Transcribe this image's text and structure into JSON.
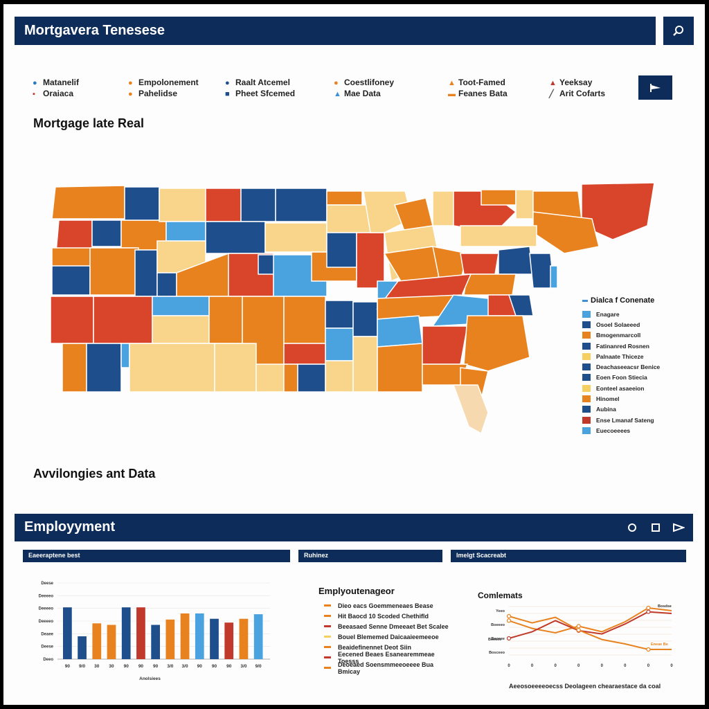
{
  "header": {
    "title": "Mortgavera Tenesese",
    "search_icon": "search-icon"
  },
  "legend_top": [
    {
      "l1": "Matanelif",
      "l2": "Oraiaca",
      "c1": "#2b7bbf",
      "c2": "#c0392b"
    },
    {
      "l1": "Empolonement",
      "l2": "Pahelidse",
      "c1": "#e8821e",
      "c2": "#e8821e"
    },
    {
      "l1": "Raalt Atcemel",
      "l2": "Pheet Sfcemed",
      "c1": "#1f4e8c",
      "c2": "#1f4e8c"
    },
    {
      "l1": "Coestlifoney",
      "l2": "Mae Data",
      "c1": "#e8821e",
      "c2": "#3f8fd6"
    },
    {
      "l1": "Toot-Famed",
      "l2": "Feanes Bata",
      "c1": "#e8821e",
      "c2": "#e8821e"
    },
    {
      "l1": "Yeeksay",
      "l2": "Arit Cofarts",
      "c1": "#c0392b",
      "c2": "#555555"
    }
  ],
  "map_section": {
    "title": "Mortgage late Real"
  },
  "map_legend": {
    "title": "Dialca f Conenate",
    "items": [
      {
        "label": "Enagare",
        "color": "#4aa3df"
      },
      {
        "label": "Osoel Solaeeed",
        "color": "#1f4e8c"
      },
      {
        "label": "Bmogenmarcoll",
        "color": "#e8821e"
      },
      {
        "label": "Fatinanred Rosnen",
        "color": "#1f4e8c"
      },
      {
        "label": "Palnaate Thiceze",
        "color": "#f6cf63"
      },
      {
        "label": "Deachaseeacsr Benice",
        "color": "#1f4e8c"
      },
      {
        "label": "Eoen Foon Stiecia",
        "color": "#1f4e8c"
      },
      {
        "label": "Eonteel asaeeion",
        "color": "#f6cf63"
      },
      {
        "label": "Hinomel",
        "color": "#e8821e"
      },
      {
        "label": "Aubina",
        "color": "#1f4e8c"
      },
      {
        "label": "Ense Lmanaf Sateng",
        "color": "#c0392b"
      },
      {
        "label": "Euecoeeees",
        "color": "#4aa3df"
      }
    ]
  },
  "avail_section": {
    "title": "Avvilongies ant Data"
  },
  "employment": {
    "title": "Employyment",
    "ctrl_circle": "circle-icon",
    "ctrl_square": "square-icon",
    "ctrl_play": "play-icon"
  },
  "panels": [
    {
      "label": "Eaeeraptene best"
    },
    {
      "label": "Ruhinez"
    },
    {
      "label": "Imelgt Scacreabt"
    }
  ],
  "chart_data": [
    {
      "type": "bar",
      "title": "",
      "xlabel": "Anolsiees",
      "ylabel": "",
      "y_tick_labels": [
        "Deese",
        "Deeeeo",
        "Deeeeo",
        "Deeeeo",
        "Deaee",
        "Deese",
        "Deeo"
      ],
      "categories": [
        "90",
        "9/0",
        "30",
        "30",
        "90",
        "90",
        "90",
        "3/0",
        "3/0",
        "90",
        "90",
        "90",
        "3/0",
        "9/0"
      ],
      "values": [
        68,
        30,
        47,
        45,
        68,
        68,
        45,
        52,
        60,
        60,
        53,
        48,
        53,
        59
      ],
      "colors": [
        "#1f4e8c",
        "#1f4e8c",
        "#e8821e",
        "#e8821e",
        "#1f4e8c",
        "#c0392b",
        "#1f4e8c",
        "#e8821e",
        "#e8821e",
        "#4aa3df",
        "#1f4e8c",
        "#c0392b",
        "#e8821e",
        "#4aa3df"
      ],
      "ylim": [
        0,
        100
      ]
    },
    {
      "type": "table",
      "title": "Emplyoutenageor",
      "items": [
        {
          "label": "Dieo eacs Goemmeneaes Bease",
          "color": "#e8821e"
        },
        {
          "label": "Hit Baocd 10 Scoded Chethifld",
          "color": "#e8821e"
        },
        {
          "label": "Beeasaed Senne Dmeeaet Bet Scalee",
          "color": "#c0392b"
        },
        {
          "label": "Bouel Blememed Daicaaieemeeoe",
          "color": "#f6cf63"
        },
        {
          "label": "Beaidefinennet Deot Siin",
          "color": "#e8821e"
        },
        {
          "label": "Eecened Beaes Esanearemmeae Toesss",
          "color": "#c0392b"
        },
        {
          "label": "Deoeaed Soensmmeeoeeee Bua Bmicay",
          "color": "#e8821e"
        }
      ]
    },
    {
      "type": "line",
      "title": "Comlemats",
      "x": [
        "0",
        "0",
        "0",
        "0",
        "0",
        "0",
        "0",
        "0"
      ],
      "y_tick_labels": [
        "Yeeo",
        "Boeeeo",
        "Baoeee",
        "Bosceeo"
      ],
      "series": [
        {
          "name": "Bosdse",
          "color": "#e8821e",
          "values": [
            62,
            48,
            40,
            52,
            42,
            60,
            85,
            80
          ]
        },
        {
          "name": "Beeeee",
          "color": "#c0392b",
          "values": [
            30,
            42,
            62,
            44,
            38,
            56,
            78,
            75
          ]
        },
        {
          "name": "Eneae Be",
          "color": "#e8821e",
          "values": [
            70,
            58,
            68,
            45,
            28,
            20,
            10,
            10
          ]
        }
      ]
    }
  ],
  "footnote": "Aeeosoeeeeoecss Deolageen chearaestace da coal"
}
